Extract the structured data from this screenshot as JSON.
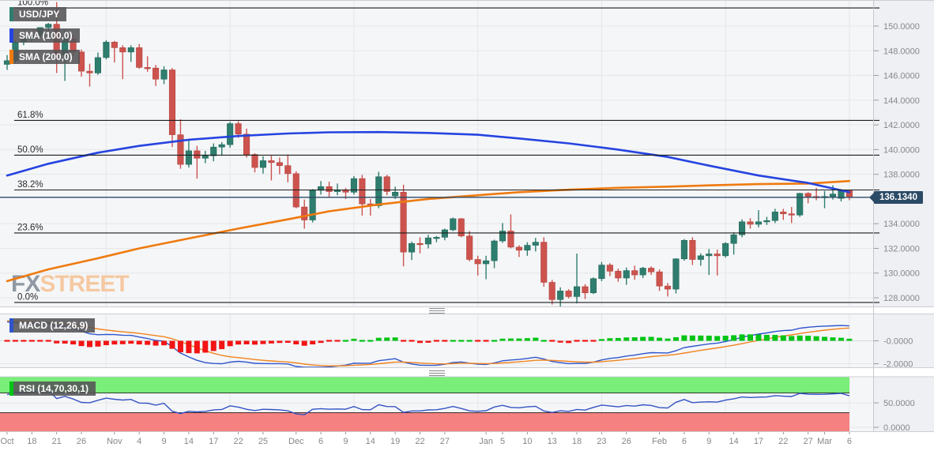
{
  "header": {
    "symbol_label": "USD/JPY",
    "sma100_label": "SMA (100,0)",
    "sma200_label": "SMA (200,0)"
  },
  "macd_panel": {
    "label": "MACD (12,26,9)"
  },
  "rsi_panel": {
    "label": "RSI (14,70,30,1)"
  },
  "watermark": {
    "fx": "FX",
    "street": "STREET"
  },
  "price_badge": "136.1340",
  "colors": {
    "bull": "#2e7d6e",
    "bull_border": "#23685a",
    "bear": "#cd534e",
    "bear_border": "#b2453f",
    "sma100": "#2544e0",
    "sma200": "#ef7a0e",
    "macd_line": "#2f55cc",
    "macd_signal": "#f0831e",
    "hist_up": "#00c414",
    "hist_down": "#f21414",
    "rsi_line": "#3353c4",
    "rsi_upper_band": "#79ee79",
    "rsi_lower_band": "#f58181",
    "price_line": "#2b4a66",
    "fib_line": "#1c1c1c",
    "grid": "#e4e6e9",
    "plot_bg": "#f5f6f8",
    "axis_bg": "#eef0f3",
    "axis_text": "#85878a",
    "panel_border": "#cdced2",
    "watermark_fx": "#9099a3",
    "watermark_street": "#f5c9a2",
    "tick_text": "#85878a"
  },
  "chart_data": {
    "type": "candlestick",
    "instrument": "USD/JPY",
    "timeframe_ticks_note": "daily candles Oct 13 2022 - Mar 6 2023",
    "last_price": 136.134,
    "price_axis": {
      "min": 127.3,
      "max": 152.1,
      "tick_labels": [
        {
          "v": 150,
          "label": "150.0000"
        },
        {
          "v": 148,
          "label": "148.0000"
        },
        {
          "v": 146,
          "label": "146.0000"
        },
        {
          "v": 144,
          "label": "144.0000"
        },
        {
          "v": 142,
          "label": "142.0000"
        },
        {
          "v": 140,
          "label": "140.0000"
        },
        {
          "v": 138,
          "label": "138.0000"
        },
        {
          "v": 134,
          "label": "134.0000"
        },
        {
          "v": 132,
          "label": "132.0000"
        },
        {
          "v": 130,
          "label": "130.0000"
        },
        {
          "v": 128,
          "label": "128.0000"
        }
      ]
    },
    "x_ticks": [
      [
        "Oct",
        0
      ],
      [
        "18",
        3
      ],
      [
        "21",
        6
      ],
      [
        "26",
        9
      ],
      [
        "Nov",
        13
      ],
      [
        "4",
        16
      ],
      [
        "9",
        19
      ],
      [
        "14",
        22
      ],
      [
        "17",
        25
      ],
      [
        "22",
        28
      ],
      [
        "25",
        31
      ],
      [
        "Dec",
        35
      ],
      [
        "6",
        38
      ],
      [
        "9",
        41
      ],
      [
        "14",
        44
      ],
      [
        "19",
        47
      ],
      [
        "22",
        50
      ],
      [
        "27",
        53
      ],
      [
        "Jan",
        58
      ],
      [
        "5",
        60
      ],
      [
        "10",
        63
      ],
      [
        "13",
        66
      ],
      [
        "18",
        69
      ],
      [
        "23",
        72
      ],
      [
        "26",
        75
      ],
      [
        "Feb",
        79
      ],
      [
        "6",
        82
      ],
      [
        "9",
        85
      ],
      [
        "14",
        88
      ],
      [
        "17",
        91
      ],
      [
        "22",
        94
      ],
      [
        "27",
        97
      ],
      [
        "Mar",
        99
      ],
      [
        "6",
        102
      ]
    ],
    "vgrid_indices": [
      12,
      27,
      42,
      57,
      72,
      87,
      102
    ],
    "candles": [
      [
        "Oct 13",
        146.9,
        147.65,
        146.45,
        147.2
      ],
      [
        "Oct 14",
        147.2,
        148.85,
        146.95,
        148.7
      ],
      [
        "Oct 17",
        148.7,
        149.08,
        148.45,
        149.05
      ],
      [
        "Oct 18",
        149.05,
        149.38,
        148.75,
        149.25
      ],
      [
        "Oct 19",
        149.25,
        149.9,
        149.1,
        149.88
      ],
      [
        "Oct 20",
        149.88,
        150.25,
        149.55,
        150.15
      ],
      [
        "Oct 21",
        150.15,
        151.94,
        146.2,
        147.65
      ],
      [
        "Oct 24",
        147.65,
        149.7,
        145.56,
        148.95
      ],
      [
        "Oct 25",
        148.95,
        149.3,
        147.55,
        147.9
      ],
      [
        "Oct 26",
        147.9,
        148.1,
        145.9,
        146.35
      ],
      [
        "Oct 27",
        146.35,
        146.95,
        145.1,
        146.2
      ],
      [
        "Oct 28",
        146.2,
        147.85,
        146.05,
        147.45
      ],
      [
        "Oct 31",
        147.45,
        148.85,
        147.3,
        148.7
      ],
      [
        "Nov 1",
        148.7,
        148.8,
        147.05,
        148.25
      ],
      [
        "Nov 2",
        148.25,
        148.45,
        145.7,
        147.9
      ],
      [
        "Nov 3",
        147.9,
        148.45,
        147.1,
        148.25
      ],
      [
        "Nov 4",
        148.25,
        148.55,
        146.55,
        146.65
      ],
      [
        "Nov 7",
        146.65,
        147.55,
        146.3,
        146.6
      ],
      [
        "Nov 8",
        146.6,
        146.85,
        145.15,
        145.7
      ],
      [
        "Nov 9",
        145.7,
        146.75,
        145.3,
        146.45
      ],
      [
        "Nov 10",
        146.45,
        146.6,
        140.2,
        141.2
      ],
      [
        "Nov 11",
        141.2,
        142.45,
        138.45,
        138.8
      ],
      [
        "Nov 14",
        138.8,
        140.8,
        138.55,
        139.9
      ],
      [
        "Nov 15",
        139.9,
        140.3,
        137.65,
        139.3
      ],
      [
        "Nov 16",
        139.3,
        139.9,
        138.9,
        139.5
      ],
      [
        "Nov 17",
        139.5,
        140.5,
        139.05,
        140.2
      ],
      [
        "Nov 18",
        140.2,
        140.6,
        139.5,
        140.4
      ],
      [
        "Nov 21",
        140.4,
        142.25,
        140.15,
        142.1
      ],
      [
        "Nov 22",
        142.1,
        142.3,
        140.95,
        141.25
      ],
      [
        "Nov 23",
        141.25,
        141.7,
        139.35,
        139.6
      ],
      [
        "Nov 24",
        139.6,
        139.7,
        138.15,
        138.55
      ],
      [
        "Nov 25",
        138.55,
        139.45,
        138.05,
        139.1
      ],
      [
        "Nov 28",
        139.1,
        139.5,
        137.5,
        138.95
      ],
      [
        "Nov 29",
        138.95,
        139.35,
        138.0,
        138.7
      ],
      [
        "Nov 30",
        138.7,
        139.6,
        137.35,
        138.05
      ],
      [
        "Dec 1",
        138.05,
        138.25,
        135.25,
        135.35
      ],
      [
        "Dec 2",
        135.35,
        135.95,
        133.6,
        134.3
      ],
      [
        "Dec 5",
        134.3,
        136.8,
        134.1,
        136.7
      ],
      [
        "Dec 6",
        136.7,
        137.45,
        136.35,
        137.0
      ],
      [
        "Dec 7",
        137.0,
        137.4,
        136.15,
        136.6
      ],
      [
        "Dec 8",
        136.6,
        137.25,
        136.3,
        136.7
      ],
      [
        "Dec 9",
        136.7,
        136.9,
        136.0,
        136.55
      ],
      [
        "Dec 12",
        136.55,
        137.85,
        136.35,
        137.65
      ],
      [
        "Dec 13",
        137.65,
        137.95,
        134.65,
        135.6
      ],
      [
        "Dec 14",
        135.6,
        136.0,
        134.65,
        135.45
      ],
      [
        "Dec 15",
        135.45,
        138.2,
        135.25,
        137.8
      ],
      [
        "Dec 16",
        137.8,
        137.95,
        136.3,
        136.6
      ],
      [
        "Dec 19",
        136.25,
        137.0,
        136.0,
        136.55
      ],
      [
        "Dec 20",
        136.55,
        137.15,
        130.55,
        131.7
      ],
      [
        "Dec 21",
        131.7,
        132.55,
        131.05,
        132.4
      ],
      [
        "Dec 22",
        132.4,
        132.9,
        131.6,
        132.35
      ],
      [
        "Dec 23",
        132.35,
        133.1,
        132.0,
        132.85
      ],
      [
        "Dec 26",
        132.85,
        133.0,
        132.5,
        132.9
      ],
      [
        "Dec 27",
        132.9,
        133.6,
        132.65,
        133.5
      ],
      [
        "Dec 28",
        133.5,
        134.5,
        133.4,
        134.4
      ],
      [
        "Dec 29",
        134.4,
        134.45,
        132.9,
        133.0
      ],
      [
        "Dec 30",
        133.0,
        133.4,
        130.95,
        131.1
      ],
      [
        "Jan 2",
        131.1,
        131.4,
        129.8,
        130.75
      ],
      [
        "Jan 3",
        130.75,
        131.4,
        129.5,
        131.0
      ],
      [
        "Jan 4",
        131.0,
        132.7,
        130.4,
        132.6
      ],
      [
        "Jan 5",
        132.6,
        134.05,
        132.45,
        133.4
      ],
      [
        "Jan 6",
        133.4,
        134.75,
        132.0,
        132.1
      ],
      [
        "Jan 9",
        132.1,
        132.25,
        131.3,
        131.85
      ],
      [
        "Jan 10",
        131.85,
        132.5,
        131.4,
        132.25
      ],
      [
        "Jan 11",
        132.25,
        132.85,
        131.75,
        132.5
      ],
      [
        "Jan 12",
        132.5,
        132.9,
        128.9,
        129.25
      ],
      [
        "Jan 13",
        129.25,
        129.45,
        127.45,
        127.85
      ],
      [
        "Jan 16",
        127.85,
        128.85,
        127.25,
        128.55
      ],
      [
        "Jan 17",
        128.55,
        128.7,
        127.95,
        128.1
      ],
      [
        "Jan 18",
        128.1,
        131.58,
        127.55,
        128.9
      ],
      [
        "Jan 19",
        128.9,
        129.1,
        127.9,
        128.4
      ],
      [
        "Jan 20",
        128.4,
        129.65,
        128.3,
        129.55
      ],
      [
        "Jan 23",
        129.55,
        130.9,
        129.35,
        130.65
      ],
      [
        "Jan 24",
        130.65,
        130.8,
        129.75,
        130.15
      ],
      [
        "Jan 25",
        130.15,
        130.35,
        129.3,
        129.6
      ],
      [
        "Jan 26",
        129.6,
        130.45,
        129.05,
        130.2
      ],
      [
        "Jan 27",
        130.2,
        130.6,
        129.45,
        129.85
      ],
      [
        "Jan 30",
        129.85,
        130.5,
        129.6,
        130.4
      ],
      [
        "Jan 31",
        130.4,
        130.55,
        129.85,
        130.1
      ],
      [
        "Feb 1",
        130.1,
        130.3,
        128.55,
        128.95
      ],
      [
        "Feb 2",
        128.95,
        129.2,
        128.1,
        128.7
      ],
      [
        "Feb 3",
        128.7,
        131.2,
        128.35,
        131.15
      ],
      [
        "Feb 6",
        131.15,
        132.75,
        131.0,
        132.65
      ],
      [
        "Feb 7",
        132.65,
        132.9,
        130.65,
        131.1
      ],
      [
        "Feb 8",
        131.1,
        131.6,
        130.6,
        131.4
      ],
      [
        "Feb 9",
        131.4,
        131.95,
        129.85,
        131.55
      ],
      [
        "Feb 10",
        131.55,
        131.9,
        129.8,
        131.4
      ],
      [
        "Feb 13",
        131.4,
        132.5,
        131.25,
        132.4
      ],
      [
        "Feb 14",
        132.4,
        133.3,
        131.5,
        133.1
      ],
      [
        "Feb 15",
        133.1,
        134.35,
        132.9,
        134.15
      ],
      [
        "Feb 16",
        134.15,
        134.45,
        133.6,
        133.95
      ],
      [
        "Feb 17",
        133.95,
        135.1,
        133.7,
        134.15
      ],
      [
        "Feb 20",
        134.15,
        134.55,
        133.9,
        134.25
      ],
      [
        "Feb 21",
        134.25,
        135.2,
        134.05,
        134.95
      ],
      [
        "Feb 22",
        134.95,
        135.2,
        134.3,
        134.8
      ],
      [
        "Feb 23",
        134.8,
        135.35,
        134.05,
        134.7
      ],
      [
        "Feb 24",
        134.7,
        136.5,
        134.55,
        136.45
      ],
      [
        "Feb 27",
        136.45,
        136.55,
        135.65,
        136.2
      ],
      [
        "Feb 28",
        136.2,
        136.9,
        135.9,
        136.15
      ],
      [
        "Mar 1",
        136.15,
        136.65,
        135.25,
        136.2
      ],
      [
        "Mar 2",
        136.2,
        137.1,
        135.95,
        136.4
      ],
      [
        "Mar 3",
        136.05,
        136.8,
        135.8,
        136.68
      ],
      [
        "Mar 6",
        136.68,
        136.75,
        135.9,
        136.134
      ]
    ],
    "sma100": [
      [
        0,
        137.9
      ],
      [
        5,
        138.85
      ],
      [
        11,
        139.75
      ],
      [
        16,
        140.3
      ],
      [
        22,
        140.8
      ],
      [
        28,
        141.1
      ],
      [
        34,
        141.3
      ],
      [
        39,
        141.4
      ],
      [
        45,
        141.42
      ],
      [
        51,
        141.35
      ],
      [
        57,
        141.2
      ],
      [
        62,
        140.9
      ],
      [
        68,
        140.5
      ],
      [
        74,
        140.0
      ],
      [
        80,
        139.4
      ],
      [
        85,
        138.7
      ],
      [
        91,
        137.9
      ],
      [
        97,
        137.3
      ],
      [
        102,
        136.55
      ]
    ],
    "sma200": [
      [
        0,
        129.35
      ],
      [
        5,
        130.3
      ],
      [
        11,
        131.2
      ],
      [
        16,
        132.0
      ],
      [
        22,
        132.8
      ],
      [
        28,
        133.6
      ],
      [
        34,
        134.35
      ],
      [
        39,
        135.0
      ],
      [
        45,
        135.55
      ],
      [
        51,
        136.0
      ],
      [
        57,
        136.3
      ],
      [
        62,
        136.55
      ],
      [
        68,
        136.75
      ],
      [
        74,
        136.9
      ],
      [
        80,
        137.0
      ],
      [
        85,
        137.1
      ],
      [
        91,
        137.2
      ],
      [
        97,
        137.25
      ],
      [
        102,
        137.45
      ]
    ],
    "fib_levels": [
      {
        "label": "100.0%",
        "value": 151.47
      },
      {
        "label": "61.8%",
        "value": 142.36
      },
      {
        "label": "50.0%",
        "value": 139.55
      },
      {
        "label": "38.2%",
        "value": 136.73
      },
      {
        "label": "23.6%",
        "value": 133.25
      },
      {
        "label": "0.0%",
        "value": 127.62
      }
    ],
    "macd": {
      "params": [
        12,
        26,
        9
      ],
      "axis": [
        {
          "v": 0,
          "label": "-0.0000"
        },
        {
          "v": -2,
          "label": "-2.0000"
        }
      ],
      "range": [
        -2.3,
        2.35
      ],
      "seed": {
        "ema12_offset": 0.85,
        "ema26_offset": -1.0,
        "signal_start": 1.75
      }
    },
    "rsi": {
      "params": [
        14,
        70,
        30,
        1
      ],
      "axis": [
        {
          "v": 50,
          "label": "50.0000"
        },
        {
          "v": 0,
          "label": "0.0000"
        }
      ],
      "overbought": 70,
      "oversold": 30,
      "seed": {
        "avg_gain": 0.5,
        "avg_loss": 0.25
      }
    }
  }
}
